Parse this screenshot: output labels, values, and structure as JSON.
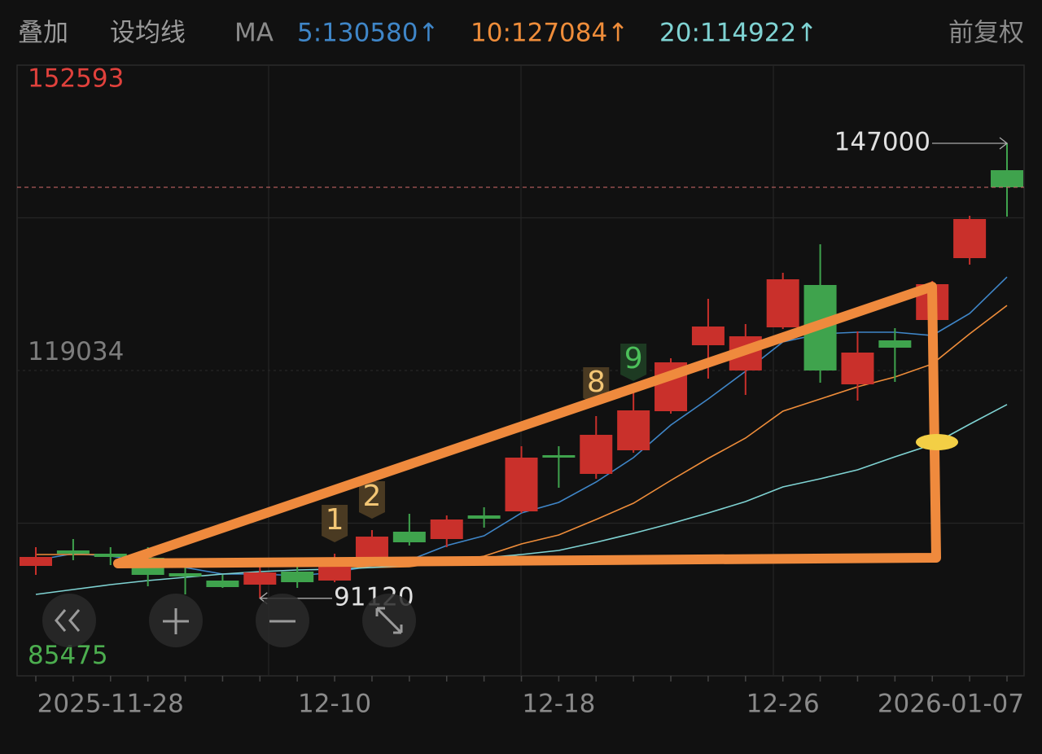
{
  "toolbar": {
    "overlay": "叠加",
    "set_ma": "设均线",
    "ma": "MA",
    "adjust": "前复权"
  },
  "chart_data": {
    "type": "candlestick",
    "categories": [
      null,
      null,
      "2025-11-28",
      null,
      null,
      null,
      null,
      null,
      "12-10",
      null,
      null,
      null,
      null,
      null,
      "12-18",
      null,
      null,
      null,
      null,
      null,
      "12-26",
      null,
      null,
      null,
      null,
      null,
      "2026-01-07"
    ],
    "open": [
      95100,
      97000,
      96600,
      96100,
      94200,
      93300,
      92800,
      94400,
      93300,
      95600,
      99300,
      98400,
      101300,
      101800,
      108700,
      106400,
      109300,
      114100,
      122200,
      119100,
      124400,
      129600,
      117400,
      122800,
      125300,
      132900,
      143700
    ],
    "high": [
      97400,
      98400,
      97400,
      97400,
      95600,
      94000,
      95100,
      95000,
      96600,
      99500,
      101500,
      101300,
      102300,
      109800,
      109800,
      113500,
      116400,
      120600,
      127900,
      124800,
      131100,
      134600,
      123900,
      124300,
      130100,
      138100,
      147000
    ],
    "low": [
      94000,
      95800,
      95200,
      92600,
      91600,
      92400,
      91120,
      92400,
      93100,
      95100,
      97600,
      97400,
      99800,
      101600,
      104700,
      105800,
      109000,
      113800,
      118100,
      116100,
      124200,
      117600,
      115400,
      117700,
      125100,
      132100,
      138000
    ],
    "close": [
      96200,
      96600,
      96200,
      94000,
      93800,
      92500,
      94300,
      93100,
      95100,
      98700,
      98000,
      100800,
      100900,
      108400,
      108400,
      111200,
      114200,
      120100,
      124500,
      123300,
      130300,
      119100,
      121300,
      121900,
      129700,
      137700,
      141600
    ],
    "td_labels": [
      null,
      null,
      null,
      null,
      null,
      null,
      null,
      null,
      "1",
      "2",
      null,
      null,
      null,
      null,
      null,
      "8",
      "9",
      null,
      null,
      null,
      null,
      null,
      null,
      null,
      null,
      null,
      null
    ],
    "up_color": "#c9302b",
    "down_color": "#3fa34d",
    "series": [
      {
        "name": "5:130580↑",
        "color": "#3f86c8",
        "values": [
          95800,
          96600,
          96300,
          95600,
          94900,
          94100,
          94100,
          93900,
          94300,
          95100,
          95800,
          97600,
          98800,
          101600,
          102900,
          105400,
          108400,
          112400,
          115600,
          119000,
          122600,
          123600,
          123800,
          123800,
          123400,
          126100,
          130580
        ]
      },
      {
        "name": "10:127084↑",
        "color": "#ef8d3a",
        "values": [
          96500,
          96500,
          96500,
          96100,
          95800,
          95600,
          95400,
          95300,
          95100,
          94900,
          95000,
          95600,
          96300,
          97800,
          98900,
          100800,
          102800,
          105600,
          108300,
          110800,
          114100,
          115600,
          117100,
          118300,
          119900,
          123600,
          127084
        ]
      },
      {
        "name": "20:114922↑",
        "color": "#7fd3d3",
        "values": [
          91600,
          92200,
          92800,
          93300,
          93700,
          94100,
          94400,
          94600,
          94700,
          94900,
          95200,
          95600,
          96100,
          96500,
          97000,
          98000,
          99100,
          100300,
          101600,
          103000,
          104800,
          105800,
          106900,
          108500,
          110000,
          112500,
          114922
        ]
      }
    ],
    "ylim": [
      81600,
      156600
    ],
    "yticks": [
      152593,
      119034,
      85475
    ],
    "high_marker": 147000,
    "low_marker": 91120
  }
}
